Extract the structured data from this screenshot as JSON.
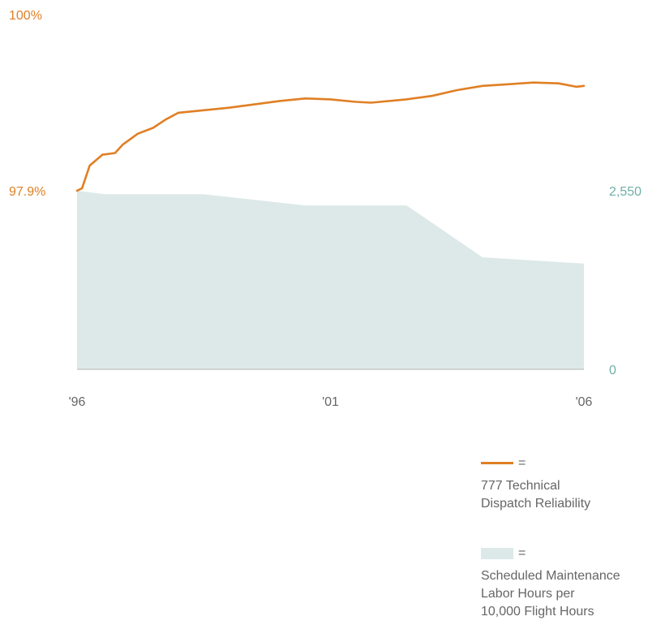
{
  "colors": {
    "reliability": "#e07f24",
    "labor": "#dce9e8",
    "labor_axis": "#6fb0a8",
    "tick_text": "#666666",
    "axis_line": "#b5b5b5"
  },
  "legend": {
    "equals": "=",
    "reliability_line1": "777 Technical",
    "reliability_line2": "Dispatch Reliability",
    "labor_line1": "Scheduled Maintenance",
    "labor_line2": "Labor Hours per",
    "labor_line3": "10,000  Flight Hours"
  },
  "chart_data": {
    "type": "line",
    "xlim": [
      1996,
      2006
    ],
    "x_ticks": [
      {
        "value": 1996,
        "label": "'96"
      },
      {
        "value": 2001,
        "label": "'01"
      },
      {
        "value": 2006,
        "label": "'06"
      }
    ],
    "y_left": {
      "ticks": [
        {
          "value": 97.9,
          "label": "97.9%"
        },
        {
          "value": 100,
          "label": "100%"
        }
      ]
    },
    "y_right": {
      "ylim": [
        0,
        2550
      ],
      "ticks": [
        {
          "value": 0,
          "label": "0"
        },
        {
          "value": 2550,
          "label": "2,550"
        }
      ]
    },
    "series": [
      {
        "key": "reliability",
        "chart": "line",
        "axis": "left",
        "points": [
          [
            1996.0,
            97.9
          ],
          [
            1996.1,
            97.93
          ],
          [
            1996.25,
            98.2
          ],
          [
            1996.5,
            98.33
          ],
          [
            1996.75,
            98.35
          ],
          [
            1996.9,
            98.45
          ],
          [
            1997.2,
            98.58
          ],
          [
            1997.5,
            98.65
          ],
          [
            1997.75,
            98.75
          ],
          [
            1998.0,
            98.83
          ],
          [
            1998.5,
            98.86
          ],
          [
            1999.0,
            98.89
          ],
          [
            1999.5,
            98.93
          ],
          [
            2000.0,
            98.97
          ],
          [
            2000.5,
            99.0
          ],
          [
            2001.0,
            98.99
          ],
          [
            2001.5,
            98.96
          ],
          [
            2001.8,
            98.95
          ],
          [
            2002.5,
            98.99
          ],
          [
            2003.0,
            99.03
          ],
          [
            2003.5,
            99.1
          ],
          [
            2004.0,
            99.15
          ],
          [
            2004.5,
            99.17
          ],
          [
            2005.0,
            99.19
          ],
          [
            2005.5,
            99.18
          ],
          [
            2005.85,
            99.14
          ],
          [
            2006.0,
            99.15
          ]
        ]
      },
      {
        "key": "labor",
        "chart": "area",
        "axis": "right",
        "points": [
          [
            1996.0,
            2550
          ],
          [
            1996.55,
            2500
          ],
          [
            1998.5,
            2500
          ],
          [
            2000.5,
            2340
          ],
          [
            2002.5,
            2340
          ],
          [
            2004.0,
            1600
          ],
          [
            2006.0,
            1510
          ]
        ]
      }
    ]
  }
}
